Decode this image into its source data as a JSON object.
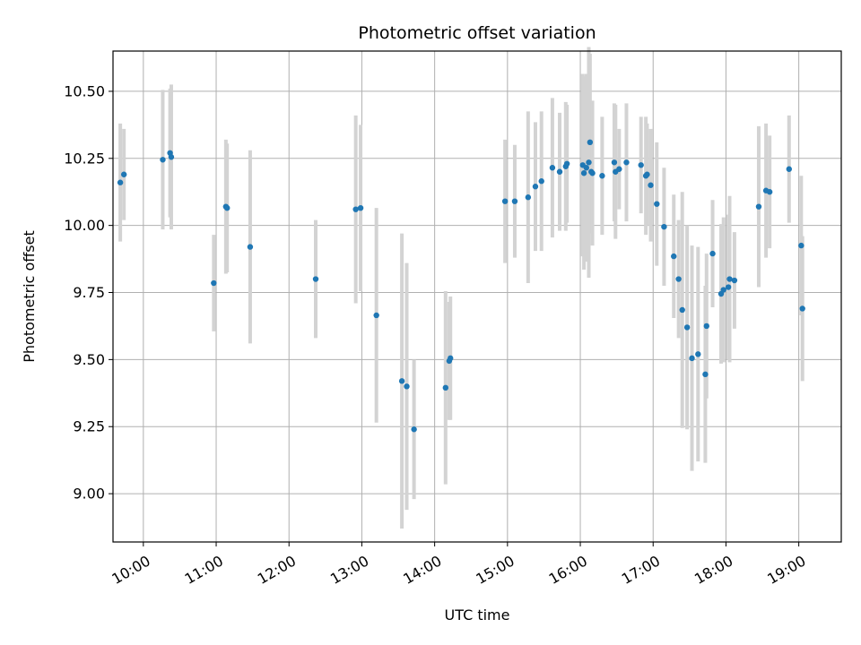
{
  "chart_data": {
    "type": "scatter",
    "title": "Photometric offset variation",
    "xlabel": "UTC time",
    "ylabel": "Photometric offset",
    "x_axis_kind": "time",
    "xlim": [
      "09:35",
      "19:35"
    ],
    "ylim": [
      8.82,
      10.65
    ],
    "x_ticks": [
      "10:00",
      "11:00",
      "12:00",
      "13:00",
      "14:00",
      "15:00",
      "16:00",
      "17:00",
      "18:00",
      "19:00"
    ],
    "y_ticks": [
      "9.00",
      "9.25",
      "9.50",
      "9.75",
      "10.00",
      "10.25",
      "10.50"
    ],
    "grid": true,
    "colors": {
      "point": "#1f77b4",
      "errorbar": "#d3d3d3",
      "grid": "#b0b0b0",
      "axes": "#000000"
    },
    "series": [
      {
        "x": [
          "09:41",
          "09:44",
          "10:16",
          "10:22",
          "10:23",
          "10:58",
          "11:08",
          "11:09",
          "11:28",
          "12:22",
          "12:55",
          "12:59",
          "13:12",
          "13:33",
          "13:37",
          "13:43",
          "14:09",
          "14:12",
          "14:13",
          "14:58",
          "15:06",
          "15:17",
          "15:23",
          "15:28",
          "15:37",
          "15:43",
          "15:48",
          "15:49",
          "16:02",
          "16:03",
          "16:05",
          "16:07",
          "16:08",
          "16:09",
          "16:10",
          "16:18",
          "16:28",
          "16:29",
          "16:32",
          "16:38",
          "16:50",
          "16:54",
          "16:55",
          "16:58",
          "17:03",
          "17:09",
          "17:17",
          "17:21",
          "17:24",
          "17:28",
          "17:32",
          "17:37",
          "17:43",
          "17:44",
          "17:49",
          "17:56",
          "17:58",
          "18:02",
          "18:03",
          "18:07",
          "18:27",
          "18:33",
          "18:36",
          "18:52",
          "19:02",
          "19:03"
        ],
        "y": [
          10.16,
          10.19,
          10.245,
          10.27,
          10.255,
          9.785,
          10.07,
          10.065,
          9.92,
          9.8,
          10.06,
          10.065,
          9.665,
          9.42,
          9.4,
          9.24,
          9.395,
          9.495,
          9.505,
          10.09,
          10.09,
          10.105,
          10.145,
          10.165,
          10.215,
          10.2,
          10.22,
          10.23,
          10.225,
          10.195,
          10.215,
          10.235,
          10.31,
          10.2,
          10.195,
          10.185,
          10.235,
          10.2,
          10.21,
          10.235,
          10.225,
          10.185,
          10.19,
          10.15,
          10.08,
          9.995,
          9.885,
          9.8,
          9.685,
          9.62,
          9.505,
          9.52,
          9.445,
          9.625,
          9.895,
          9.745,
          9.76,
          9.77,
          9.8,
          9.795,
          10.07,
          10.13,
          10.125,
          10.21,
          9.925,
          9.69
        ],
        "yerr": [
          0.22,
          0.17,
          0.26,
          0.24,
          0.27,
          0.18,
          0.25,
          0.24,
          0.36,
          0.22,
          0.35,
          0.31,
          0.4,
          0.55,
          0.46,
          0.26,
          0.36,
          0.22,
          0.23,
          0.23,
          0.21,
          0.32,
          0.24,
          0.26,
          0.26,
          0.22,
          0.24,
          0.22,
          0.34,
          0.36,
          0.35,
          0.43,
          0.33,
          0.23,
          0.27,
          0.22,
          0.22,
          0.25,
          0.15,
          0.22,
          0.18,
          0.22,
          0.19,
          0.21,
          0.23,
          0.22,
          0.23,
          0.22,
          0.44,
          0.38,
          0.42,
          0.4,
          0.33,
          0.27,
          0.2,
          0.26,
          0.27,
          0.27,
          0.31,
          0.18,
          0.3,
          0.25,
          0.21,
          0.2,
          0.26,
          0.27
        ]
      }
    ]
  }
}
